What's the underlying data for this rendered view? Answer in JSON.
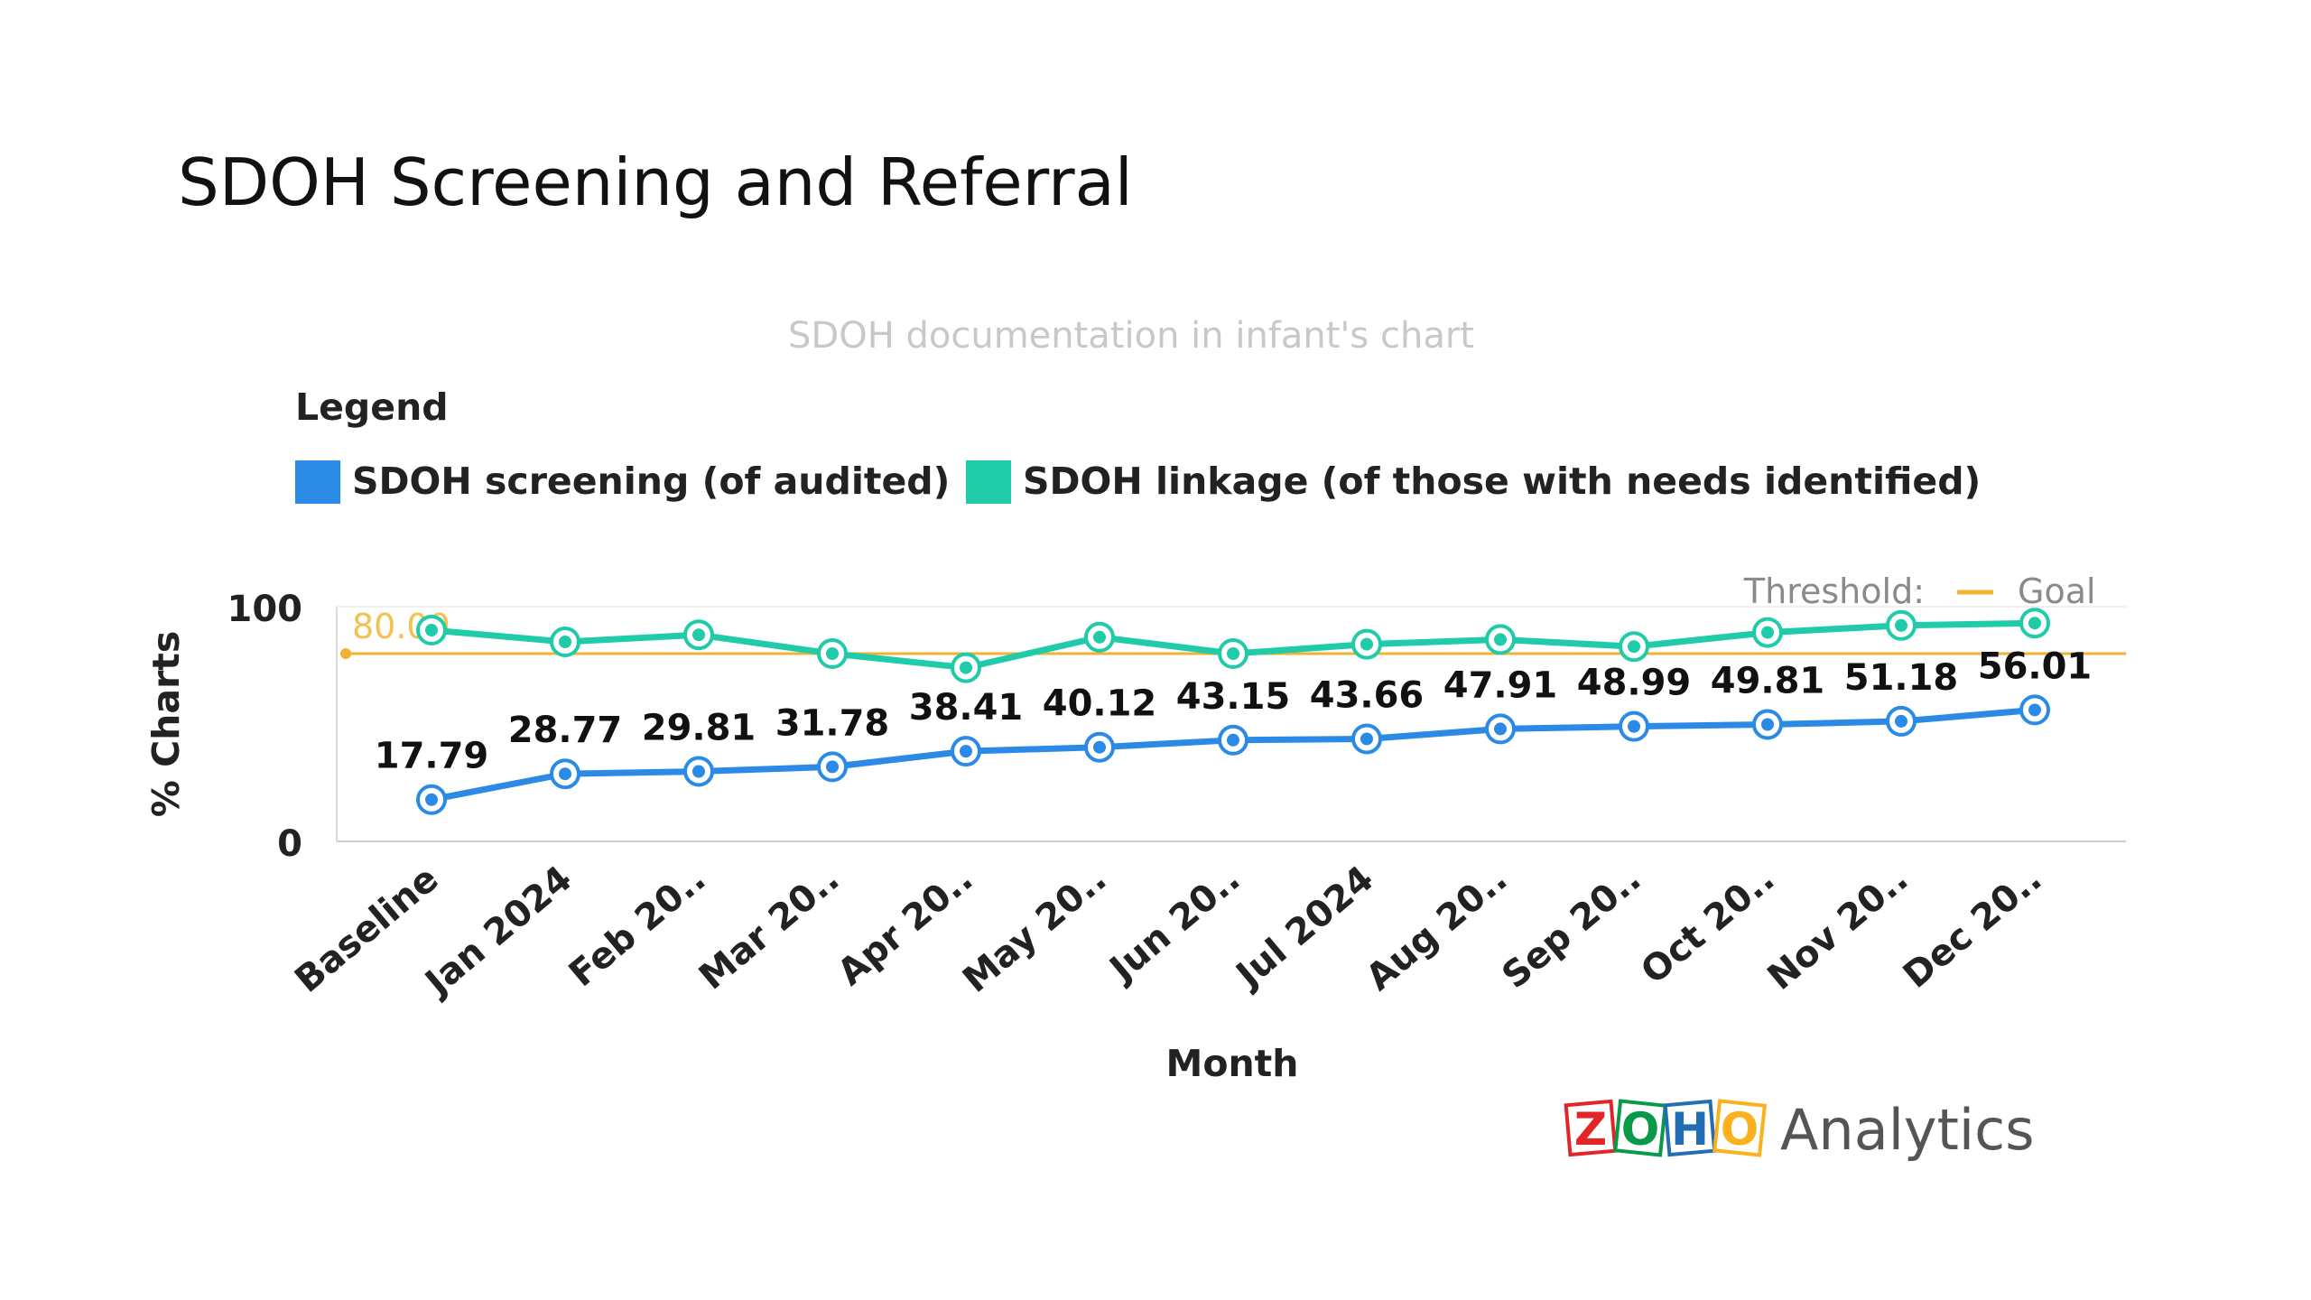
{
  "slide": {
    "title": "SDOH Screening and Referral"
  },
  "chart_data": {
    "type": "line",
    "title": "SDOH documentation in infant's chart",
    "legend_title": "Legend",
    "legend_position": "top-left",
    "xlabel": "Month",
    "ylabel": "% Charts",
    "ylim": [
      0,
      100
    ],
    "yticks": [
      "0",
      "100"
    ],
    "categories": [
      "Baseline",
      "Jan 2024",
      "Feb 20..",
      "Mar 20..",
      "Apr 20..",
      "May 20..",
      "Jun 20..",
      "Jul 2024",
      "Aug 20..",
      "Sep 20..",
      "Oct 20..",
      "Nov 20..",
      "Dec 20.."
    ],
    "series": [
      {
        "name": "SDOH screening (of audited)",
        "color": "#2b8ae6",
        "values": [
          17.79,
          28.77,
          29.81,
          31.78,
          38.41,
          40.12,
          43.15,
          43.66,
          47.91,
          48.99,
          49.81,
          51.18,
          56.01
        ],
        "labels": [
          "17.79",
          "28.77",
          "29.81",
          "31.78",
          "38.41",
          "40.12",
          "43.15",
          "43.66",
          "47.91",
          "48.99",
          "49.81",
          "51.18",
          "56.01"
        ]
      },
      {
        "name": "SDOH linkage (of those with needs identified)",
        "color": "#1fcba8",
        "values": [
          90,
          85,
          88,
          80,
          74,
          87,
          80,
          84,
          86,
          83,
          89,
          92,
          93
        ]
      }
    ],
    "threshold": {
      "label": "Threshold:",
      "name": "Goal",
      "value": 80,
      "value_label": "80.00",
      "color": "#f2b233"
    },
    "grid": false
  },
  "logo": {
    "letters": [
      "Z",
      "O",
      "H",
      "O"
    ],
    "letter_colors": [
      "#e42527",
      "#089949",
      "#226db4",
      "#f9b21d"
    ],
    "text": "Analytics"
  }
}
